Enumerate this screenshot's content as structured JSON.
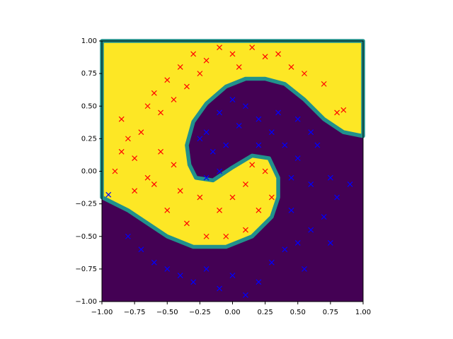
{
  "chart_data": {
    "type": "scatter",
    "xlim": [
      -1,
      1
    ],
    "ylim": [
      -1,
      1
    ],
    "xticks": [
      {
        "value": -1,
        "label": "−1.00"
      },
      {
        "value": -0.75,
        "label": "−0.75"
      },
      {
        "value": -0.5,
        "label": "−0.50"
      },
      {
        "value": -0.25,
        "label": "−0.25"
      },
      {
        "value": 0,
        "label": "0.00"
      },
      {
        "value": 0.25,
        "label": "0.25"
      },
      {
        "value": 0.5,
        "label": "0.50"
      },
      {
        "value": 0.75,
        "label": "0.75"
      },
      {
        "value": 1,
        "label": "1.00"
      }
    ],
    "yticks": [
      {
        "value": -1,
        "label": "−1.00"
      },
      {
        "value": -0.75,
        "label": "−0.75"
      },
      {
        "value": -0.5,
        "label": "−0.50"
      },
      {
        "value": -0.25,
        "label": "−0.25"
      },
      {
        "value": 0,
        "label": "0.00"
      },
      {
        "value": 0.25,
        "label": "0.25"
      },
      {
        "value": 0.5,
        "label": "0.50"
      },
      {
        "value": 0.75,
        "label": "0.75"
      },
      {
        "value": 1,
        "label": "1.00"
      }
    ],
    "series": [
      {
        "color": "#ff0000",
        "x": [
          -0.85,
          -0.8,
          -0.75,
          -0.7,
          -0.65,
          -0.6,
          -0.55,
          -0.5,
          -0.45,
          -0.4,
          -0.35,
          -0.3,
          -0.25,
          -0.2,
          -0.1,
          0.0,
          0.05,
          0.15,
          0.25,
          0.35,
          0.45,
          0.55,
          0.7,
          0.8,
          0.85,
          -0.9,
          -0.75,
          -0.6,
          -0.55,
          -0.45,
          -0.5,
          -0.35,
          -0.2,
          -0.05,
          0.1,
          0.2,
          0.3,
          0.25,
          0.1,
          0.0,
          -0.1,
          -0.25,
          -0.4,
          0.15,
          -0.65,
          -0.85
        ],
        "values": [
          0.4,
          0.25,
          0.1,
          0.3,
          0.5,
          0.6,
          0.45,
          0.7,
          0.55,
          0.8,
          0.65,
          0.9,
          0.75,
          0.85,
          0.95,
          0.9,
          0.8,
          0.95,
          0.88,
          0.9,
          0.8,
          0.75,
          0.67,
          0.45,
          0.47,
          0.0,
          -0.15,
          -0.1,
          0.15,
          0.05,
          -0.3,
          -0.4,
          -0.5,
          -0.5,
          -0.45,
          -0.3,
          -0.2,
          0.0,
          -0.1,
          -0.2,
          -0.3,
          -0.2,
          -0.15,
          0.05,
          -0.05,
          0.15
        ]
      },
      {
        "color": "#0000ff",
        "x": [
          -0.95,
          -0.8,
          -0.7,
          -0.6,
          -0.5,
          -0.4,
          -0.3,
          -0.2,
          -0.1,
          0.0,
          0.1,
          0.2,
          0.3,
          0.4,
          0.5,
          0.6,
          0.7,
          0.8,
          0.9,
          0.75,
          0.55,
          0.45,
          0.6,
          0.5,
          0.4,
          0.3,
          0.2,
          0.1,
          0.0,
          -0.1,
          -0.2,
          -0.15,
          -0.05,
          0.05,
          0.2,
          0.35,
          0.5,
          0.65,
          0.45,
          -0.2,
          -0.1,
          0.6,
          0.75,
          -0.25
        ],
        "values": [
          -0.18,
          -0.5,
          -0.6,
          -0.7,
          -0.75,
          -0.8,
          -0.85,
          -0.75,
          -0.9,
          -0.8,
          -0.95,
          -0.85,
          -0.7,
          -0.6,
          -0.55,
          -0.45,
          -0.35,
          -0.2,
          -0.1,
          -0.55,
          -0.75,
          -0.3,
          -0.1,
          0.1,
          0.2,
          0.3,
          0.4,
          0.5,
          0.55,
          0.45,
          0.3,
          0.15,
          0.2,
          0.35,
          0.2,
          0.45,
          0.4,
          0.2,
          -0.05,
          -0.05,
          0.0,
          0.3,
          -0.05,
          0.25
        ]
      }
    ]
  }
}
